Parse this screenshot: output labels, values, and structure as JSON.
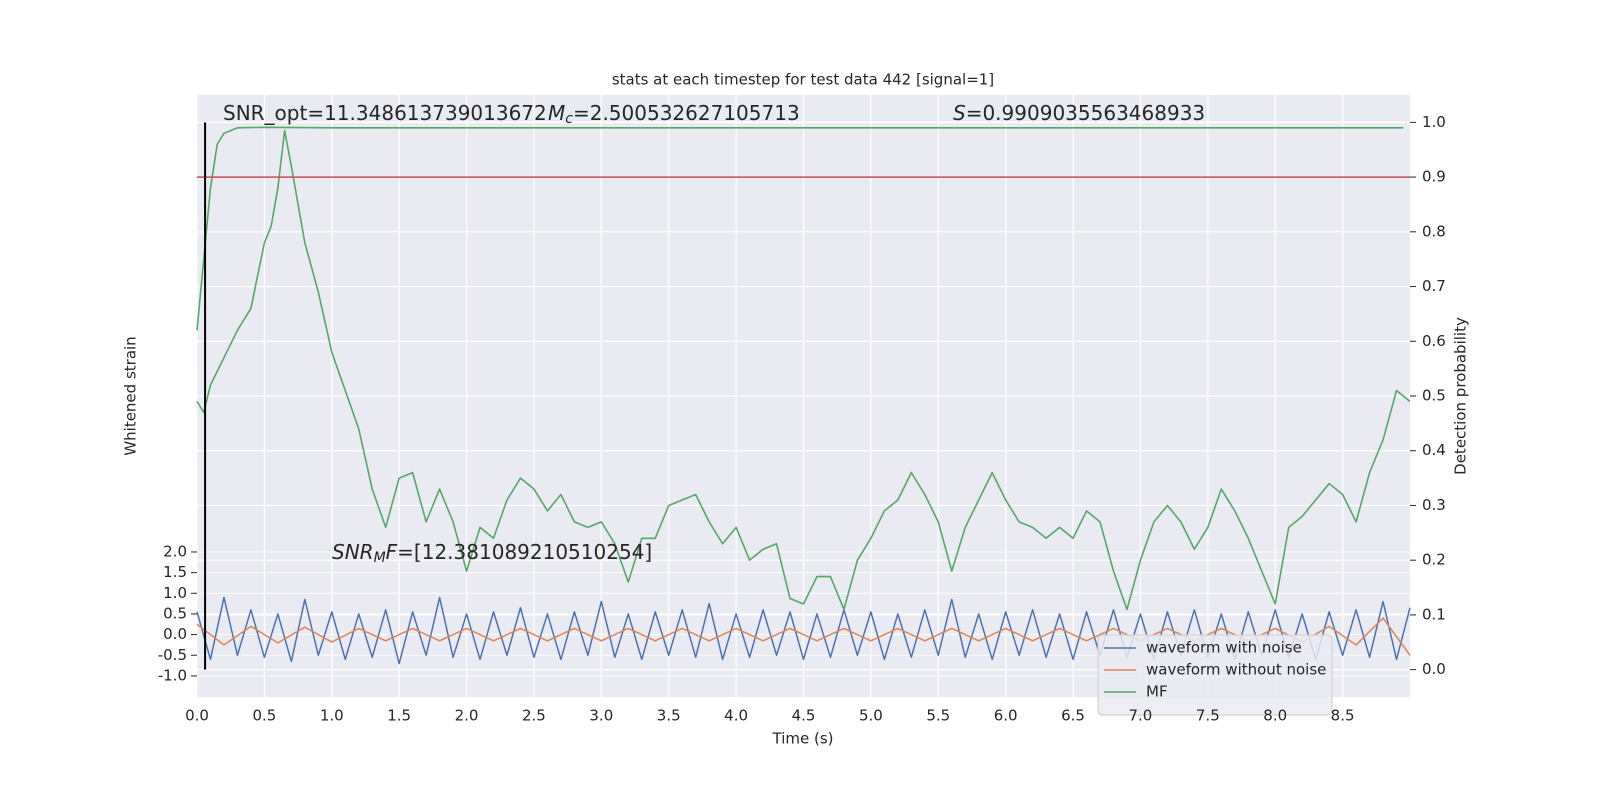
{
  "chart_data": {
    "type": "line",
    "title": "stats at each timestep for test data 442 [signal=1]",
    "xlabel": "Time (s)",
    "ylabel": "Whitened strain",
    "y2label": "Detection probability",
    "xlim": [
      0,
      9.0
    ],
    "ylim": [
      -1.51,
      13.06
    ],
    "y2lim": [
      -0.05,
      1.05
    ],
    "xticks": [
      {
        "value": 0,
        "label": "0.0"
      },
      0.5,
      {
        "value": 1,
        "label": "1.0"
      },
      1.5,
      {
        "value": 2,
        "label": "2.0"
      },
      2.5,
      {
        "value": 3,
        "label": "3.0"
      },
      3.5,
      {
        "value": 4,
        "label": "4.0"
      },
      4.5,
      {
        "value": 5,
        "label": "5.0"
      },
      5.5,
      {
        "value": 6,
        "label": "6.0"
      },
      6.5,
      {
        "value": 7,
        "label": "7.0"
      },
      7.5,
      {
        "value": 8,
        "label": "8.0"
      },
      8.5
    ],
    "yticks": [
      {
        "value": -1,
        "label": "-1.0"
      },
      -0.5,
      {
        "value": 0,
        "label": "0.0"
      },
      0.5,
      {
        "value": 1,
        "label": "1.0"
      },
      1.5,
      {
        "value": 2,
        "label": "2.0"
      }
    ],
    "y2ticks": [
      {
        "value": 0,
        "label": "0.0"
      },
      0.1,
      0.2,
      0.3,
      0.4,
      0.5,
      0.6,
      0.7,
      0.8,
      0.9,
      {
        "value": 1,
        "label": "1.0"
      }
    ],
    "grid": true,
    "legend": "lower right",
    "annotations": [
      {
        "parts": [
          "SNR_opt=11.348613739013672"
        ]
      },
      {
        "parts": [
          "M",
          "c",
          "=2.500532627105713"
        ]
      },
      {
        "parts": [
          "S",
          "=0.9909035563468933"
        ]
      },
      {
        "parts": [
          "SNR",
          "M",
          "F",
          "=[12.381089210510254]"
        ]
      }
    ],
    "hline": {
      "y2": 0.9,
      "color": "#c44e52"
    },
    "vline": {
      "x": 0.06,
      "y2_span": [
        0,
        1
      ],
      "color": "#000000"
    },
    "series": [
      {
        "name": "waveform with noise",
        "color": "#4c72b0",
        "axis": "y",
        "x": [
          0,
          0.1,
          0.2,
          0.3,
          0.4,
          0.5,
          0.6,
          0.7,
          0.8,
          0.9,
          1.0,
          1.1,
          1.2,
          1.3,
          1.4,
          1.5,
          1.6,
          1.7,
          1.8,
          1.9,
          2.0,
          2.1,
          2.2,
          2.3,
          2.4,
          2.5,
          2.6,
          2.7,
          2.8,
          2.9,
          3.0,
          3.1,
          3.2,
          3.3,
          3.4,
          3.5,
          3.6,
          3.7,
          3.8,
          3.9,
          4.0,
          4.1,
          4.2,
          4.3,
          4.4,
          4.5,
          4.6,
          4.7,
          4.8,
          4.9,
          5.0,
          5.1,
          5.2,
          5.3,
          5.4,
          5.5,
          5.6,
          5.7,
          5.8,
          5.9,
          6.0,
          6.1,
          6.2,
          6.3,
          6.4,
          6.5,
          6.6,
          6.7,
          6.8,
          6.9,
          7.0,
          7.1,
          7.2,
          7.3,
          7.4,
          7.5,
          7.6,
          7.7,
          7.8,
          7.9,
          8.0,
          8.1,
          8.2,
          8.3,
          8.4,
          8.5,
          8.6,
          8.7,
          8.8,
          8.9,
          9.0
        ],
        "values": [
          0.55,
          -0.6,
          0.9,
          -0.5,
          0.6,
          -0.55,
          0.5,
          -0.65,
          0.85,
          -0.5,
          0.55,
          -0.6,
          0.5,
          -0.55,
          0.6,
          -0.7,
          0.55,
          -0.5,
          0.9,
          -0.55,
          0.5,
          -0.6,
          0.55,
          -0.5,
          0.65,
          -0.55,
          0.5,
          -0.6,
          0.55,
          -0.5,
          0.8,
          -0.55,
          0.5,
          -0.6,
          0.55,
          -0.5,
          0.6,
          -0.55,
          0.75,
          -0.6,
          0.5,
          -0.55,
          0.6,
          -0.5,
          0.55,
          -0.6,
          0.5,
          -0.55,
          0.6,
          -0.5,
          0.55,
          -0.6,
          0.5,
          -0.55,
          0.6,
          -0.5,
          0.85,
          -0.55,
          0.5,
          -0.6,
          0.55,
          -0.5,
          0.6,
          -0.55,
          0.5,
          -0.6,
          0.55,
          -0.5,
          0.6,
          -0.55,
          0.5,
          -0.6,
          0.55,
          -0.5,
          0.6,
          -0.55,
          0.5,
          -0.6,
          0.55,
          -0.5,
          0.6,
          -0.55,
          0.5,
          -0.6,
          0.55,
          -0.5,
          0.6,
          -0.55,
          0.8,
          -0.6,
          0.65
        ]
      },
      {
        "name": "waveform without noise",
        "color": "#dd8452",
        "axis": "y",
        "x": [
          0,
          0.2,
          0.4,
          0.6,
          0.8,
          1.0,
          1.2,
          1.4,
          1.6,
          1.8,
          2.0,
          2.2,
          2.4,
          2.6,
          2.8,
          3.0,
          3.2,
          3.4,
          3.6,
          3.8,
          4.0,
          4.2,
          4.4,
          4.6,
          4.8,
          5.0,
          5.2,
          5.4,
          5.6,
          5.8,
          6.0,
          6.2,
          6.4,
          6.6,
          6.8,
          7.0,
          7.2,
          7.4,
          7.6,
          7.8,
          8.0,
          8.2,
          8.4,
          8.6,
          8.8,
          9.0
        ],
        "values": [
          0.25,
          -0.25,
          0.2,
          -0.2,
          0.18,
          -0.18,
          0.15,
          -0.15,
          0.15,
          -0.15,
          0.15,
          -0.15,
          0.15,
          -0.15,
          0.15,
          -0.15,
          0.15,
          -0.15,
          0.15,
          -0.15,
          0.15,
          -0.15,
          0.15,
          -0.15,
          0.15,
          -0.15,
          0.15,
          -0.15,
          0.15,
          -0.15,
          0.15,
          -0.15,
          0.15,
          -0.15,
          0.15,
          -0.15,
          0.15,
          -0.15,
          0.15,
          -0.15,
          0.15,
          -0.18,
          0.2,
          -0.25,
          0.4,
          -0.5
        ]
      },
      {
        "name": "MF",
        "color": "#55a868",
        "axis": "y2",
        "x": [
          0,
          0.05,
          0.1,
          0.2,
          0.3,
          0.4,
          0.5,
          0.55,
          0.6,
          0.65,
          0.7,
          0.8,
          0.9,
          1.0,
          1.1,
          1.2,
          1.3,
          1.4,
          1.5,
          1.6,
          1.7,
          1.8,
          1.9,
          2.0,
          2.1,
          2.2,
          2.3,
          2.4,
          2.5,
          2.6,
          2.7,
          2.8,
          2.9,
          3.0,
          3.1,
          3.2,
          3.3,
          3.4,
          3.5,
          3.6,
          3.7,
          3.8,
          3.9,
          4.0,
          4.1,
          4.2,
          4.3,
          4.4,
          4.5,
          4.6,
          4.7,
          4.8,
          4.9,
          5.0,
          5.1,
          5.2,
          5.3,
          5.4,
          5.5,
          5.6,
          5.7,
          5.8,
          5.9,
          6.0,
          6.1,
          6.2,
          6.3,
          6.4,
          6.5,
          6.6,
          6.7,
          6.8,
          6.9,
          7.0,
          7.1,
          7.2,
          7.3,
          7.4,
          7.5,
          7.6,
          7.7,
          7.8,
          7.9,
          8.0,
          8.1,
          8.2,
          8.3,
          8.4,
          8.5,
          8.6,
          8.7,
          8.8,
          8.9,
          9.0
        ],
        "values": [
          0.49,
          0.47,
          0.52,
          0.57,
          0.62,
          0.66,
          0.78,
          0.81,
          0.88,
          0.985,
          0.92,
          0.78,
          0.69,
          0.58,
          0.51,
          0.44,
          0.33,
          0.26,
          0.35,
          0.36,
          0.27,
          0.33,
          0.27,
          0.18,
          0.26,
          0.24,
          0.31,
          0.35,
          0.33,
          0.29,
          0.32,
          0.27,
          0.26,
          0.27,
          0.23,
          0.16,
          0.24,
          0.24,
          0.3,
          0.31,
          0.32,
          0.27,
          0.23,
          0.26,
          0.2,
          0.22,
          0.23,
          0.13,
          0.12,
          0.17,
          0.17,
          0.11,
          0.2,
          0.24,
          0.29,
          0.31,
          0.36,
          0.32,
          0.27,
          0.18,
          0.26,
          0.31,
          0.36,
          0.31,
          0.27,
          0.26,
          0.24,
          0.26,
          0.24,
          0.29,
          0.27,
          0.18,
          0.11,
          0.2,
          0.27,
          0.3,
          0.27,
          0.22,
          0.26,
          0.33,
          0.29,
          0.24,
          0.18,
          0.12,
          0.26,
          0.28,
          0.31,
          0.34,
          0.32,
          0.27,
          0.36,
          0.42,
          0.51,
          0.49
        ]
      },
      {
        "color": "#55a868",
        "axis": "y2",
        "x": [
          0,
          0.05,
          0.1,
          0.15,
          0.2,
          0.3,
          0.5,
          1.0,
          8.95
        ],
        "values": [
          0.62,
          0.75,
          0.88,
          0.96,
          0.98,
          0.99,
          0.991,
          0.99,
          0.99
        ]
      }
    ]
  }
}
